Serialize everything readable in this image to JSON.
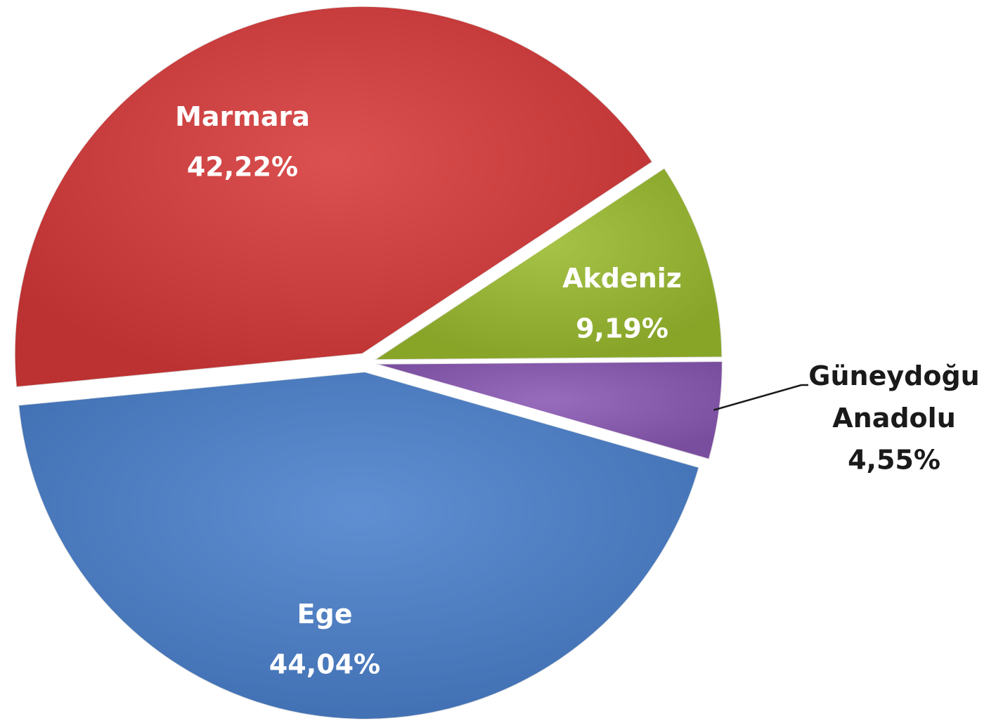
{
  "chart_data": {
    "type": "pie",
    "categories": [
      "Marmara",
      "Akdeniz",
      "Güneydoğu Anadolu",
      "Ege"
    ],
    "values": [
      42.22,
      9.19,
      4.55,
      44.04
    ],
    "value_labels": [
      "42,22%",
      "9,19%",
      "4,55%",
      "44,04%"
    ],
    "colors": [
      "#d63838",
      "#9abb2e",
      "#8a58b4",
      "#4a80cc"
    ]
  }
}
